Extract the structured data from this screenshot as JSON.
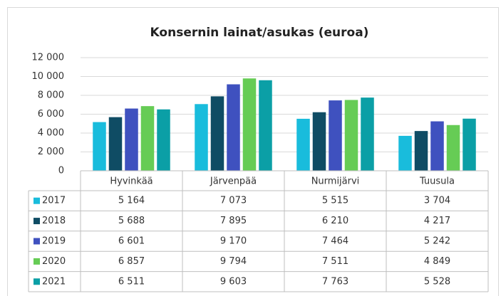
{
  "chart_data": {
    "type": "bar",
    "title": "Konsernin lainat/asukas (euroa)",
    "categories": [
      "Hyvinkää",
      "Järvenpää",
      "Nurmijärvi",
      "Tuusula"
    ],
    "series": [
      {
        "name": "2017",
        "color": "#19bcdc",
        "values": [
          5164,
          7073,
          5515,
          3704
        ],
        "value_labels": [
          "5 164",
          "7 073",
          "5 515",
          "3 704"
        ]
      },
      {
        "name": "2018",
        "color": "#0f4c64",
        "values": [
          5688,
          7895,
          6210,
          4217
        ],
        "value_labels": [
          "5 688",
          "7 895",
          "6 210",
          "4 217"
        ]
      },
      {
        "name": "2019",
        "color": "#3f51bf",
        "values": [
          6601,
          9170,
          7464,
          5242
        ],
        "value_labels": [
          "6 601",
          "9 170",
          "7 464",
          "5 242"
        ]
      },
      {
        "name": "2020",
        "color": "#66cc55",
        "values": [
          6857,
          9794,
          7511,
          4849
        ],
        "value_labels": [
          "6 857",
          "9 794",
          "7 511",
          "4 849"
        ]
      },
      {
        "name": "2021",
        "color": "#0b9fa6",
        "values": [
          6511,
          9603,
          7763,
          5528
        ],
        "value_labels": [
          "6 511",
          "9 603",
          "7 763",
          "5 528"
        ]
      }
    ],
    "ylim": [
      0,
      12000
    ],
    "yticks": [
      0,
      {
        "value": 2000,
        "label": "2 000"
      },
      {
        "value": 4000,
        "label": "4 000"
      },
      {
        "value": 6000,
        "label": "6 000"
      },
      {
        "value": 8000,
        "label": "8 000"
      },
      {
        "value": 10000,
        "label": "10 000"
      },
      {
        "value": 12000,
        "label": "12 000"
      }
    ],
    "grid": true
  }
}
